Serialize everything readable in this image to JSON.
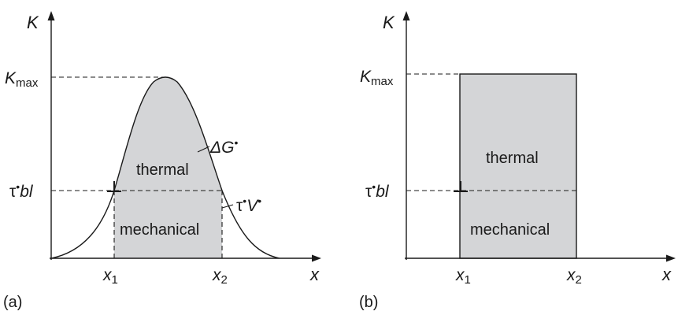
{
  "colors": {
    "fill": "#d4d5d7",
    "ink": "#1a1a1a"
  },
  "panels": [
    {
      "tag": "(a)",
      "y_axis": "K",
      "x_axis": "x",
      "k_max": {
        "base": "K",
        "sub": "max"
      },
      "tau_level": {
        "greek": "τ",
        "dot": "•",
        "rest": "bl"
      },
      "x1": {
        "base": "x",
        "sub": "1"
      },
      "x2": {
        "base": "x",
        "sub": "2"
      },
      "region_upper": "thermal",
      "region_lower": "mechanical",
      "curve_label": {
        "base": "ΔG",
        "dot": "•"
      },
      "tau_v_label": {
        "greek": "τ",
        "dot": "•",
        "rest": "V",
        "dot2": "•"
      }
    },
    {
      "tag": "(b)",
      "y_axis": "K",
      "x_axis": "x",
      "k_max": {
        "base": "K",
        "sub": "max"
      },
      "tau_level": {
        "greek": "τ",
        "dot": "•",
        "rest": "bl"
      },
      "x1": {
        "base": "x",
        "sub": "1"
      },
      "x2": {
        "base": "x",
        "sub": "2"
      },
      "region_upper": "thermal",
      "region_lower": "mechanical"
    }
  ]
}
